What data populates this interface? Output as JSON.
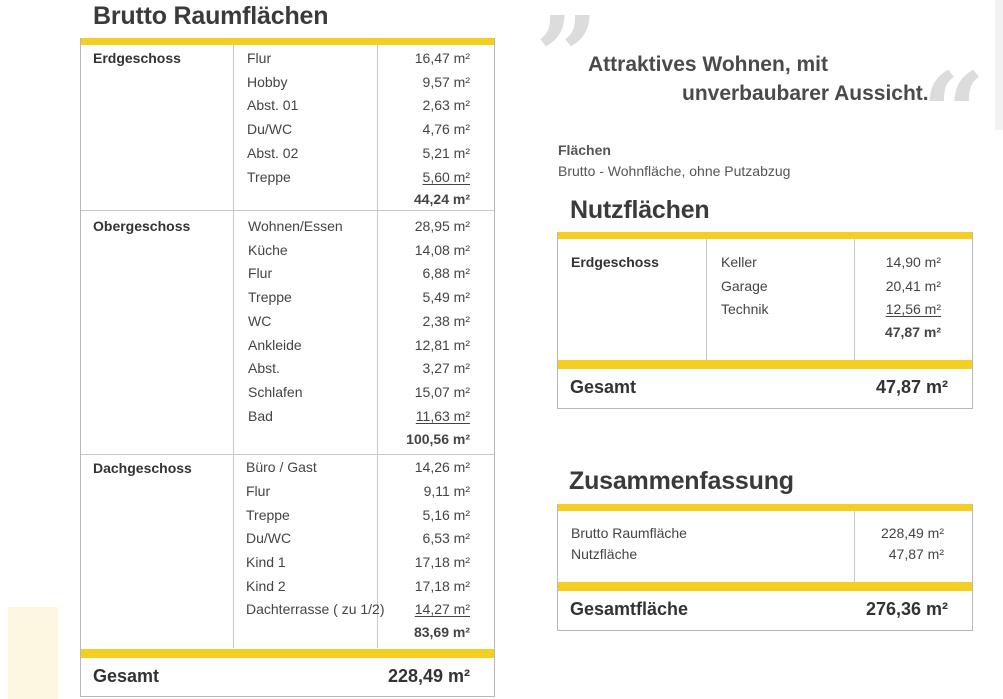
{
  "brutto": {
    "title": "Brutto Raumflächen",
    "sections": [
      {
        "label": "Erdgeschoss",
        "items": [
          {
            "name": "Flur",
            "value": "16,47 m²"
          },
          {
            "name": "Hobby",
            "value": "9,57 m²"
          },
          {
            "name": "Abst. 01",
            "value": "2,63 m²"
          },
          {
            "name": "Du/WC",
            "value": "4,76 m²"
          },
          {
            "name": "Abst. 02",
            "value": "5,21 m²"
          },
          {
            "name": "Treppe",
            "value": "5,60 m²"
          }
        ],
        "subtotal": "44,24 m²"
      },
      {
        "label": "Obergeschoss",
        "items": [
          {
            "name": "Wohnen/Essen",
            "value": "28,95 m²"
          },
          {
            "name": "Küche",
            "value": "14,08 m²"
          },
          {
            "name": "Flur",
            "value": "6,88 m²"
          },
          {
            "name": "Treppe",
            "value": "5,49 m²"
          },
          {
            "name": "WC",
            "value": "2,38 m²"
          },
          {
            "name": "Ankleide",
            "value": "12,81 m²"
          },
          {
            "name": "Abst.",
            "value": "3,27 m²"
          },
          {
            "name": "Schlafen",
            "value": "15,07 m²"
          },
          {
            "name": "Bad",
            "value": "11,63 m²"
          }
        ],
        "subtotal": "100,56 m²"
      },
      {
        "label": "Dachgeschoss",
        "items": [
          {
            "name": "Büro / Gast",
            "value": "14,26 m²"
          },
          {
            "name": "Flur",
            "value": "9,11 m²"
          },
          {
            "name": "Treppe",
            "value": "5,16 m²"
          },
          {
            "name": "Du/WC",
            "value": "6,53 m²"
          },
          {
            "name": "Kind 1",
            "value": "17,18 m²"
          },
          {
            "name": "Kind 2",
            "value": "17,18 m²"
          },
          {
            "name": "Dachterrasse ( zu 1/2)",
            "value": "14,27 m²"
          }
        ],
        "subtotal": "83,69 m²"
      }
    ],
    "total_label": "Gesamt",
    "total_value": "228,49 m²"
  },
  "quote": {
    "line1": "Attraktives Wohnen, mit",
    "line2": "unverbaubarer Aussicht.",
    "open_mark": "”",
    "close_mark": "“"
  },
  "flaechen": {
    "title": "Flächen",
    "subtitle": "Brutto - Wohnfläche, ohne Putzabzug"
  },
  "nutz": {
    "title": "Nutzflächen",
    "section_label": "Erdgeschoss",
    "items": [
      {
        "name": "Keller",
        "value": "14,90 m²"
      },
      {
        "name": "Garage",
        "value": "20,41 m²"
      },
      {
        "name": "Technik",
        "value": "12,56 m²"
      }
    ],
    "subtotal": "47,87 m²",
    "total_label": "Gesamt",
    "total_value": "47,87 m²"
  },
  "summary": {
    "title": "Zusammenfassung",
    "items": [
      {
        "name": "Brutto Raumfläche",
        "value": "228,49 m²"
      },
      {
        "name": "Nutzfläche",
        "value": "47,87 m²"
      }
    ],
    "total_label": "Gesamtfläche",
    "total_value": "276,36 m²"
  },
  "colors": {
    "accent": "#f4cf22",
    "border": "#b8b8b8",
    "decor": "#fdf6e0"
  }
}
